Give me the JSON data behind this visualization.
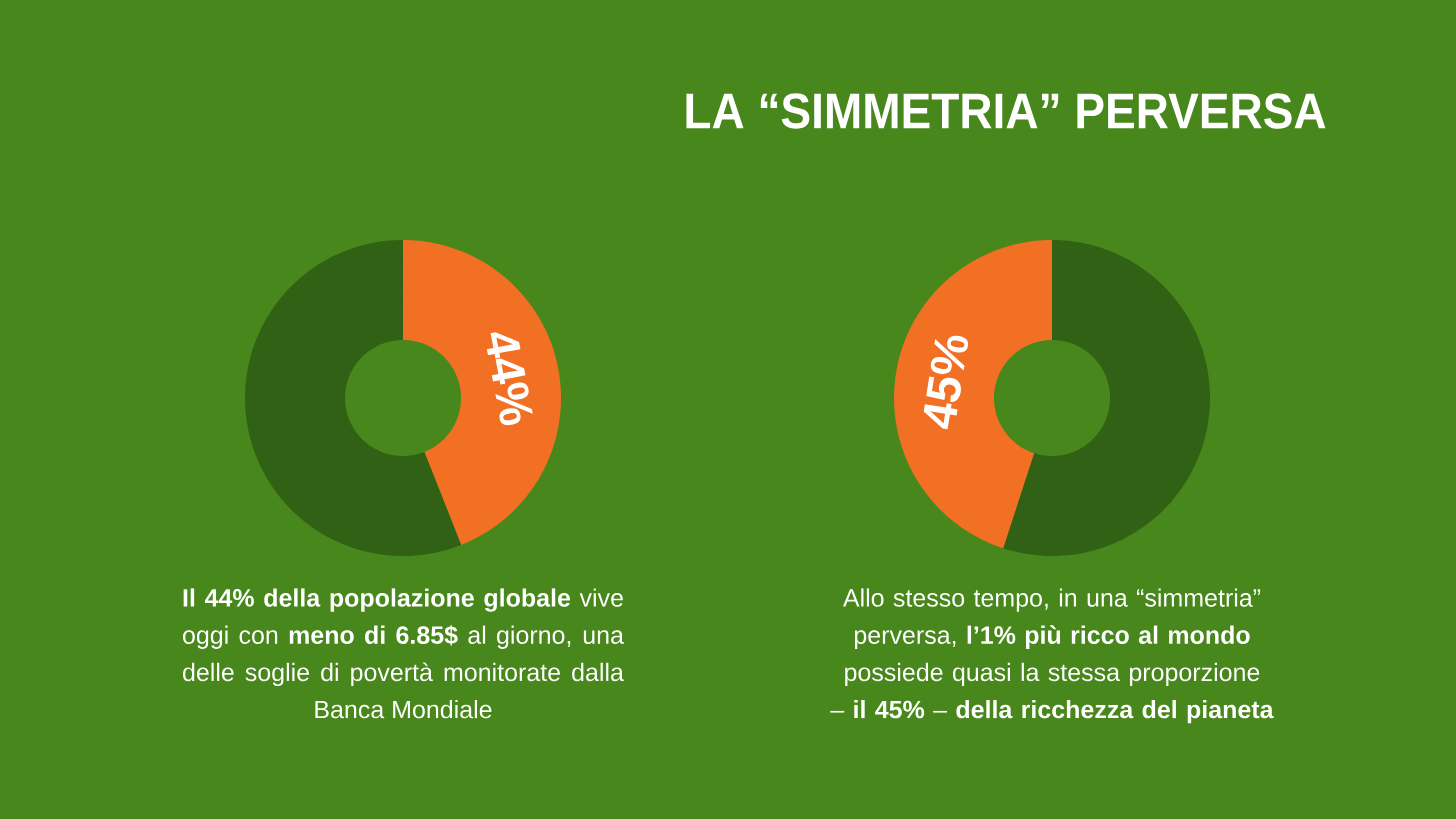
{
  "chart_data": [
    {
      "type": "donut",
      "categories": [
        null,
        null
      ],
      "values": [
        44,
        56
      ],
      "colors": [
        "#f17024",
        "#316114"
      ],
      "value_labels": [
        "44%",
        null
      ],
      "annotations": [
        "**Il 44% della popolazione globale** vive oggi con **meno di 6.85$** al giorno, una delle soglie di povertà monitorate dalla Banca Mondiale"
      ]
    },
    {
      "type": "donut",
      "title": "LA “SIMMETRIA” PERVERSA",
      "categories": [
        null,
        null
      ],
      "values": [
        55,
        45
      ],
      "colors": [
        "#316114",
        "#f17024"
      ],
      "value_labels": [
        null,
        "45%"
      ],
      "annotations": [
        "Allo stesso tempo, in una “simmetria” perversa, **l’1% più ricco al mondo** possiede quasi la stessa proporzione – **il 45%** – **della ricchezza del pianeta**"
      ]
    }
  ]
}
